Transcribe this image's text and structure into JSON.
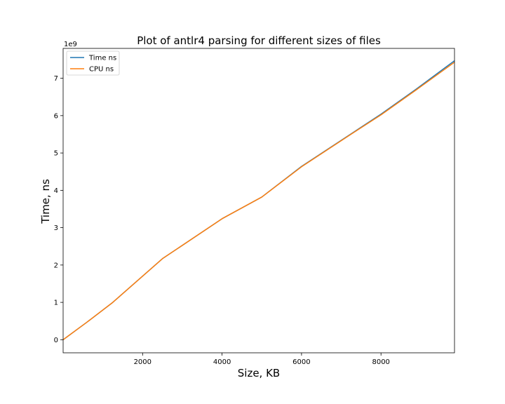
{
  "chart_data": {
    "type": "line",
    "title": "Plot of antlr4 parsing for different sizes of files",
    "xlabel": "Size, KB",
    "ylabel": "Time, ns",
    "y_offset_label": "1e9",
    "y_scale": 1000000000,
    "xlim": [
      0,
      9850
    ],
    "ylim": [
      -350000000,
      7800000000
    ],
    "x_ticks": [
      2000,
      4000,
      6000,
      8000
    ],
    "x_tick_labels": [
      "2000",
      "4000",
      "6000",
      "8000"
    ],
    "y_ticks": [
      0,
      1000000000,
      2000000000,
      3000000000,
      4000000000,
      5000000000,
      6000000000,
      7000000000
    ],
    "y_tick_labels": [
      "0",
      "1",
      "2",
      "3",
      "4",
      "5",
      "6",
      "7"
    ],
    "grid": false,
    "legend_position": "upper-left",
    "series": [
      {
        "name": "Time ns",
        "color": "#1f77b4",
        "x": [
          0,
          600,
          1250,
          2500,
          4000,
          5000,
          6000,
          7300,
          8000,
          8900,
          9850
        ],
        "y": [
          0,
          470000000,
          1000000000,
          2170000000,
          3240000000,
          3820000000,
          4640000000,
          5550000000,
          6040000000,
          6720000000,
          7470000000
        ]
      },
      {
        "name": "CPU ns",
        "color": "#ff7f0e",
        "x": [
          0,
          600,
          1250,
          2500,
          4000,
          5000,
          6000,
          7300,
          8000,
          8900,
          9850
        ],
        "y": [
          0,
          470000000,
          1000000000,
          2170000000,
          3240000000,
          3820000000,
          4630000000,
          5540000000,
          6020000000,
          6700000000,
          7430000000
        ]
      }
    ]
  }
}
